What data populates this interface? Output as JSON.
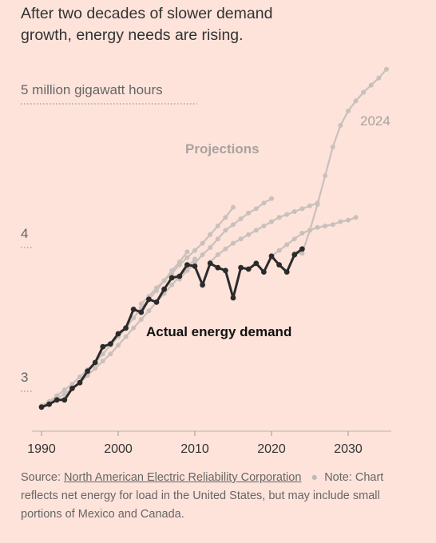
{
  "title": "After two decades of slower demand growth, energy needs are rising.",
  "source": {
    "prefix": "Source:",
    "org": "North American Electric Reliability Corporation",
    "note": "Note: Chart reflects net energy for load in the United States, but may include small portions of Mexico and Canada."
  },
  "chart_data": {
    "type": "line",
    "title": "After two decades of slower demand growth, energy needs are rising.",
    "xlabel": "",
    "ylabel": "",
    "x_ticks": [
      1990,
      2000,
      2010,
      2020,
      2030
    ],
    "y_ticks": [
      {
        "value": 3,
        "label": "3"
      },
      {
        "value": 4,
        "label": "4"
      },
      {
        "value": 5,
        "label": "5 million gigawatt hours"
      }
    ],
    "xlim": [
      1990,
      2036
    ],
    "ylim": [
      2.8,
      5.2
    ],
    "annotations": {
      "projections": "Projections",
      "actual": "Actual energy demand",
      "latest": "2024"
    },
    "colors": {
      "actual": "#2b2b2b",
      "projection": "#c9c0bc",
      "background": "#fde3da"
    },
    "actual": {
      "name": "Actual energy demand",
      "x": [
        1990,
        1991,
        1992,
        1993,
        1994,
        1995,
        1996,
        1997,
        1998,
        1999,
        2000,
        2001,
        2002,
        2003,
        2004,
        2005,
        2006,
        2007,
        2008,
        2009,
        2010,
        2011,
        2012,
        2013,
        2014,
        2015,
        2016,
        2017,
        2018,
        2019,
        2020,
        2021,
        2022,
        2023,
        2024
      ],
      "y": [
        2.89,
        2.91,
        2.94,
        2.94,
        3.02,
        3.06,
        3.14,
        3.2,
        3.31,
        3.33,
        3.4,
        3.44,
        3.57,
        3.55,
        3.64,
        3.62,
        3.71,
        3.79,
        3.8,
        3.88,
        3.87,
        3.74,
        3.89,
        3.86,
        3.84,
        3.65,
        3.86,
        3.85,
        3.89,
        3.83,
        3.94,
        3.88,
        3.83,
        3.95,
        3.99
      ]
    },
    "projections": [
      {
        "x": [
          1990,
          1991,
          1992,
          1993,
          1994,
          1995,
          1996,
          1997,
          1998,
          1999,
          2000,
          2001,
          2002,
          2003,
          2004,
          2005,
          2006,
          2007,
          2008,
          2009
        ],
        "y": [
          2.9,
          2.93,
          2.97,
          3.01,
          3.05,
          3.1,
          3.15,
          3.2,
          3.26,
          3.32,
          3.38,
          3.44,
          3.51,
          3.58,
          3.64,
          3.7,
          3.77,
          3.84,
          3.9,
          3.97
        ]
      },
      {
        "x": [
          1990,
          1991,
          1992,
          1993,
          1994,
          1995,
          1996,
          1997,
          1998,
          1999,
          2000,
          2001,
          2002,
          2003,
          2004,
          2005,
          2006,
          2007,
          2008,
          2009,
          2010
        ],
        "y": [
          2.89,
          2.92,
          2.95,
          2.98,
          3.02,
          3.06,
          3.11,
          3.16,
          3.21,
          3.26,
          3.32,
          3.38,
          3.44,
          3.5,
          3.56,
          3.62,
          3.68,
          3.74,
          3.8,
          3.86,
          3.92
        ]
      },
      {
        "x": [
          2003,
          2004,
          2005,
          2006,
          2007,
          2008,
          2009,
          2010,
          2011,
          2012,
          2013,
          2014,
          2015
        ],
        "y": [
          3.61,
          3.66,
          3.72,
          3.77,
          3.82,
          3.88,
          3.93,
          3.98,
          4.03,
          4.09,
          4.15,
          4.21,
          4.28
        ]
      },
      {
        "x": [
          2008,
          2009,
          2010,
          2011,
          2012,
          2013,
          2014,
          2015,
          2016,
          2017,
          2018,
          2019,
          2020
        ],
        "y": [
          3.78,
          3.84,
          3.89,
          3.95,
          4.0,
          4.06,
          4.12,
          4.16,
          4.2,
          4.24,
          4.27,
          4.31,
          4.34
        ]
      },
      {
        "x": [
          2012,
          2013,
          2014,
          2015,
          2016,
          2017,
          2018,
          2019,
          2020,
          2021,
          2022,
          2023,
          2024,
          2025,
          2026
        ],
        "y": [
          3.9,
          3.95,
          3.99,
          4.03,
          4.06,
          4.09,
          4.12,
          4.15,
          4.18,
          4.21,
          4.23,
          4.25,
          4.27,
          4.29,
          4.31
        ]
      },
      {
        "x": [
          2020,
          2021,
          2022,
          2023,
          2024,
          2025,
          2026,
          2027,
          2028,
          2029,
          2030,
          2031
        ],
        "y": [
          3.94,
          3.98,
          4.02,
          4.06,
          4.1,
          4.12,
          4.14,
          4.15,
          4.16,
          4.18,
          4.19,
          4.21
        ]
      },
      {
        "x": [
          2023,
          2024,
          2025,
          2026,
          2027,
          2028,
          2029,
          2030,
          2031,
          2032,
          2033,
          2034,
          2035
        ],
        "y": [
          3.96,
          3.96,
          4.12,
          4.3,
          4.5,
          4.7,
          4.85,
          4.95,
          5.02,
          5.08,
          5.13,
          5.18,
          5.24
        ]
      }
    ]
  }
}
